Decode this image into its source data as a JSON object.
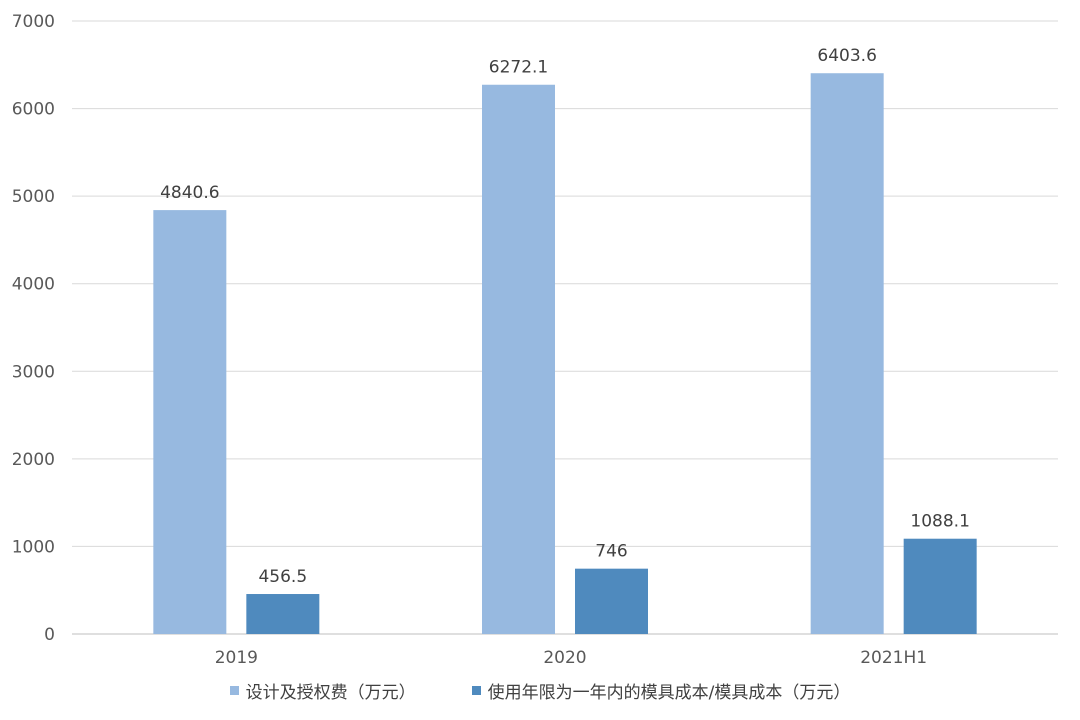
{
  "chart_data": {
    "type": "bar",
    "categories": [
      "2019",
      "2020",
      "2021H1"
    ],
    "series": [
      {
        "name": "设计及授权费（万元）",
        "values": [
          4840.6,
          6272.1,
          6403.6
        ],
        "labels": [
          "4840.6",
          "6272.1",
          "6403.6"
        ],
        "color": "#97b9e0"
      },
      {
        "name": "使用年限为一年内的模具成本/模具成本（万元）",
        "values": [
          456.5,
          746,
          1088.1
        ],
        "labels": [
          "456.5",
          "746",
          "1088.1"
        ],
        "color": "#4f8abe"
      }
    ],
    "ylim": [
      0,
      7000
    ],
    "yticks": [
      "0",
      "1000",
      "2000",
      "3000",
      "4000",
      "5000",
      "6000",
      "7000"
    ],
    "grid": true,
    "legend": "bottom-center"
  }
}
